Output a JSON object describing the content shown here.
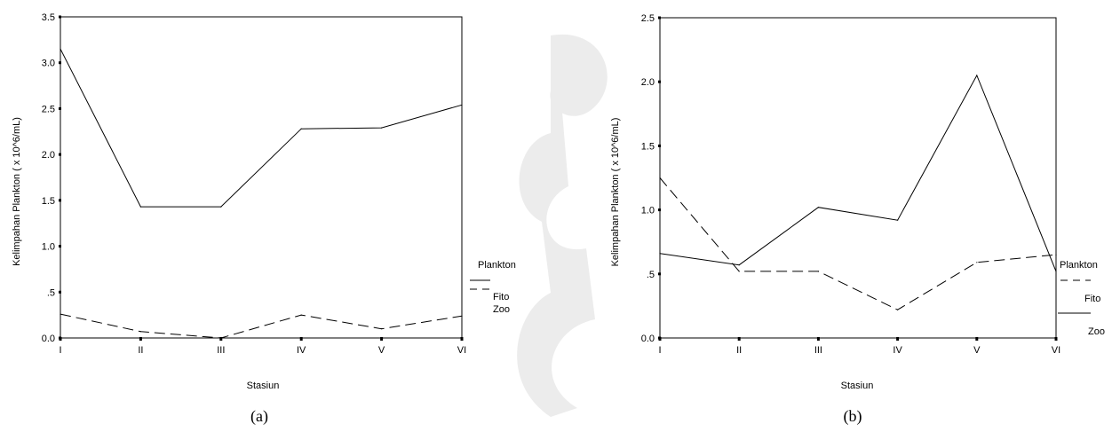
{
  "chart_data": [
    {
      "type": "line",
      "caption": "(a)",
      "xlabel": "Stasiun",
      "ylabel": "Kelimpahan Plankton ( x 10^6/mL)",
      "categories": [
        "I",
        "II",
        "III",
        "IV",
        "V",
        "VI"
      ],
      "ylim": [
        0,
        3.5
      ],
      "yticks": [
        0,
        0.5,
        1.0,
        1.5,
        2.0,
        2.5,
        3.0,
        3.5
      ],
      "ytick_labels": [
        "0.0",
        ".5",
        "1.0",
        "1.5",
        "2.0",
        "2.5",
        "3.0",
        "3.5"
      ],
      "legend_title": "Plankton",
      "series": [
        {
          "name": "Fito",
          "dash": "solid",
          "values": [
            3.15,
            1.43,
            1.43,
            2.28,
            2.29,
            2.54
          ]
        },
        {
          "name": "Zoo",
          "dash": "dashed",
          "values": [
            0.26,
            0.07,
            0.0,
            0.25,
            0.1,
            0.24
          ]
        }
      ]
    },
    {
      "type": "line",
      "caption": "(b)",
      "xlabel": "Stasiun",
      "ylabel": "Kelimpahan Plankton ( x 10^6/mL)",
      "categories": [
        "I",
        "II",
        "III",
        "IV",
        "V",
        "VI"
      ],
      "ylim": [
        0,
        2.5
      ],
      "yticks": [
        0,
        0.5,
        1.0,
        1.5,
        2.0,
        2.5
      ],
      "ytick_labels": [
        "0.0",
        ".5",
        "1.0",
        "1.5",
        "2.0",
        "2.5"
      ],
      "legend_title": "Plankton",
      "series": [
        {
          "name": "Fito",
          "dash": "dashed",
          "values": [
            1.25,
            0.52,
            0.52,
            0.22,
            0.59,
            0.65
          ]
        },
        {
          "name": "Zoo",
          "dash": "solid",
          "values": [
            0.66,
            0.57,
            1.02,
            0.92,
            2.05,
            0.52
          ]
        }
      ]
    }
  ]
}
